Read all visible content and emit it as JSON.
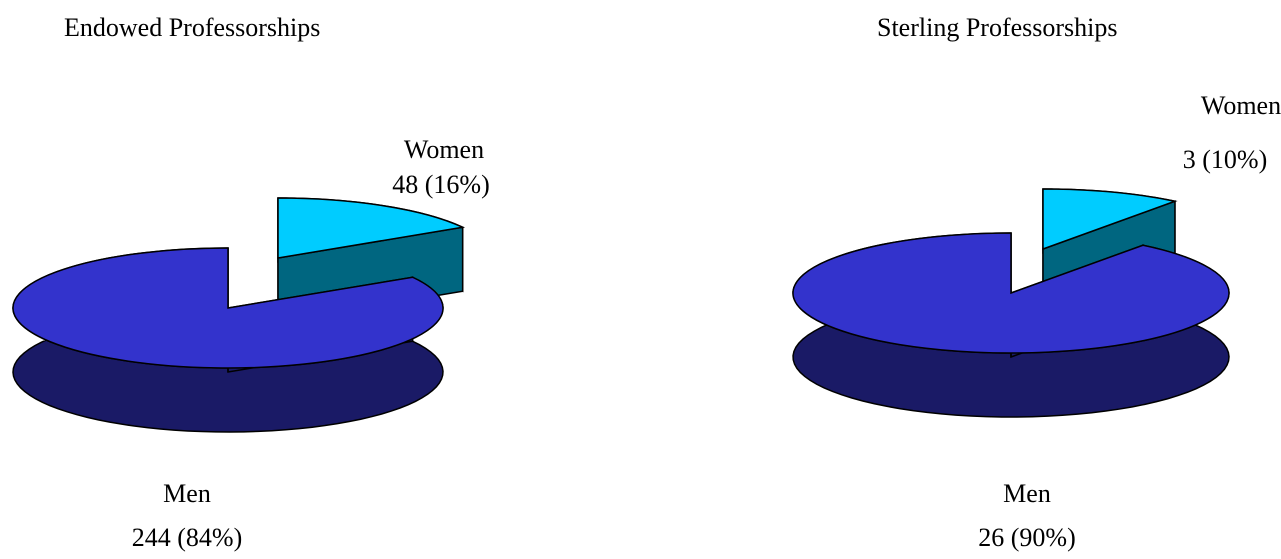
{
  "chart_data": [
    {
      "type": "pie",
      "title": "Endowed Professorships",
      "slices": [
        {
          "label": "Women",
          "value_text": "48 (16%)",
          "value": 48,
          "percent": 16,
          "color": "#00ccff",
          "side_color": "#006680",
          "exploded": true
        },
        {
          "label": "Men",
          "value_text": "244 (84%)",
          "value": 244,
          "percent": 84,
          "color": "#3333cc",
          "side_color": "#1a1a66",
          "exploded": false
        }
      ],
      "style": "3d",
      "legend": "none"
    },
    {
      "type": "pie",
      "title": "Sterling Professorships",
      "slices": [
        {
          "label": "Women",
          "value_text": "3 (10%)",
          "value": 3,
          "percent": 10,
          "color": "#00ccff",
          "side_color": "#006680",
          "exploded": true
        },
        {
          "label": "Men",
          "value_text": "26 (90%)",
          "value": 26,
          "percent": 90,
          "color": "#3333cc",
          "side_color": "#1a1a66",
          "exploded": false
        }
      ],
      "style": "3d",
      "legend": "none"
    }
  ]
}
